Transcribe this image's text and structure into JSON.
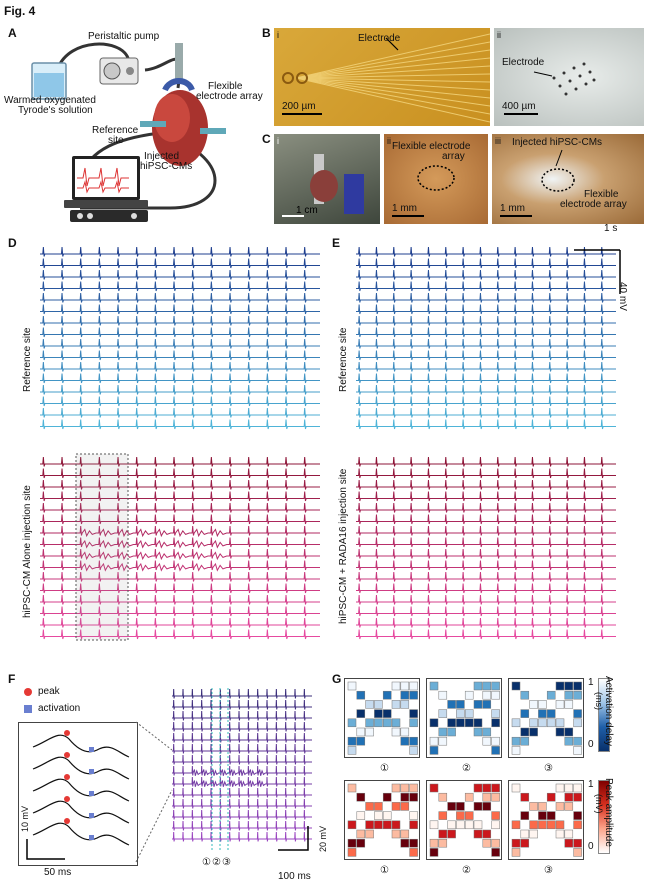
{
  "figure_title": "Fig. 4",
  "panels": {
    "A": "A",
    "B": "B",
    "C": "C",
    "D": "D",
    "E": "E",
    "F": "F",
    "G": "G"
  },
  "panel_a": {
    "pump": "Peristaltic pump",
    "solution_line1": "Warmed oxygenated",
    "solution_line2": "Tyrode's solution",
    "array_line1": "Flexible",
    "array_line2": "electrode array",
    "ref_line1": "Reference",
    "ref_line2": "site",
    "inj_line1": "Injected",
    "inj_line2": "hiPSC-CMs"
  },
  "panel_b": {
    "sub_i": "i",
    "sub_ii": "ii",
    "electrode_i": "Electrode",
    "scale_i": "200 µm",
    "electrode_ii": "Electrode",
    "scale_ii": "400 µm"
  },
  "panel_c": {
    "sub_i": "i",
    "sub_ii": "ii",
    "sub_iii": "iii",
    "scale_i": "1 cm",
    "array_line1": "Flexible electrode",
    "array_line2": "array",
    "scale_ii": "1 mm",
    "inj": "Injected hiPSC-CMs",
    "array_iii_line1": "Flexible",
    "array_iii_line2": "electrode array",
    "scale_iii": "1 mm"
  },
  "panel_d": {
    "ref_label": "Reference site",
    "inj_label": "hiPSC-CM Alone injection site",
    "ref_traces": 16,
    "inj_traces": 16,
    "beats": 15
  },
  "panel_e": {
    "ref_label": "Reference site",
    "inj_label": "hiPSC-CM + RADA16 injection site",
    "time_scale": "1 s",
    "volt_scale": "40 mV"
  },
  "panel_f": {
    "legend_peak": "peak",
    "legend_activation": "activation",
    "inset_volt": "10 mV",
    "inset_time": "50 ms",
    "volt_scale": "20 mV",
    "time_scale": "100 ms",
    "markers": [
      "①",
      "②",
      "③"
    ]
  },
  "panel_g": {
    "markers": [
      "①",
      "②",
      "③"
    ],
    "act_title": "Activation delay",
    "act_unit": "(ms)",
    "act_max": "1",
    "act_min": "0",
    "amp_title": "Peak amplitude",
    "amp_unit": "(mV)",
    "amp_max": "1",
    "amp_min": "0"
  },
  "colors": {
    "ref_dark": "#1f3f8f",
    "ref_light": "#4fb4d8",
    "inj_dark": "#8e1538",
    "inj_light": "#e64aa0",
    "f_dark": "#3a2d7a",
    "f_light": "#9a45c0",
    "peak": "#e53935",
    "activation": "#6a7fd0"
  }
}
